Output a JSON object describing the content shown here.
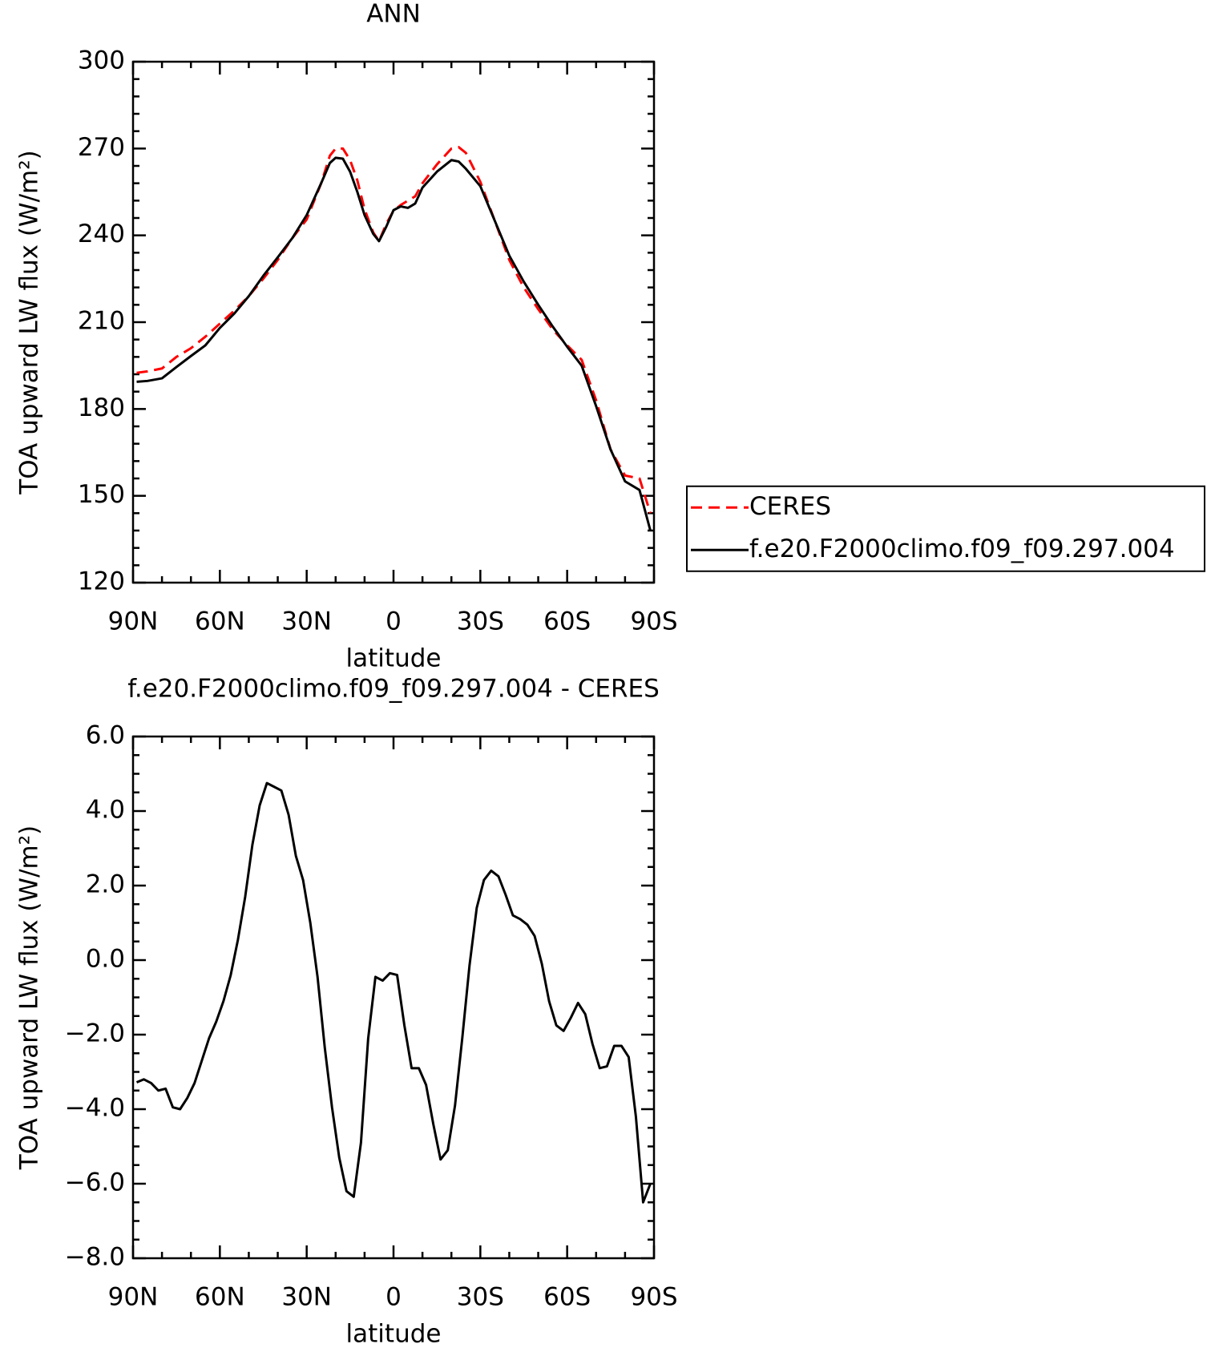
{
  "chart_data": [
    {
      "type": "line",
      "title": "ANN",
      "xlabel": "latitude",
      "ylabel": "TOA upward LW flux (W/m²)",
      "x": [
        88.75,
        85,
        80,
        75,
        70,
        65,
        60,
        55,
        50,
        45,
        40,
        35,
        30,
        25,
        22,
        20,
        17.5,
        15,
        12.5,
        10,
        7,
        5,
        2.5,
        0,
        -2.5,
        -5,
        -7.5,
        -10,
        -15,
        -20,
        -22.5,
        -25,
        -30,
        -35,
        -40,
        -45,
        -50,
        -55,
        -60,
        -65,
        -70,
        -75,
        -80,
        -85,
        -88.75
      ],
      "series": [
        {
          "name": "CERES",
          "color": "#ff0000",
          "line_style": "dashed",
          "values": [
            192.5,
            193,
            194,
            198,
            201,
            205,
            209.5,
            214,
            219,
            225,
            231.5,
            239,
            245.5,
            258,
            267.5,
            270,
            270,
            266,
            259,
            249,
            241,
            238,
            244,
            248.5,
            250.5,
            252,
            253.5,
            258,
            264.5,
            270,
            270.5,
            268.5,
            258.5,
            245,
            231.5,
            222,
            214.5,
            207.5,
            202,
            197,
            183,
            166,
            157,
            156,
            144
          ]
        },
        {
          "name": "f.e20.F2000climo.f09_f09.297.004",
          "color": "#000000",
          "line_style": "solid",
          "values": [
            189.4,
            189.7,
            190.6,
            194.5,
            198.3,
            202,
            208,
            213,
            219,
            226,
            232.4,
            239,
            247,
            258,
            265,
            266.8,
            266.5,
            262,
            255,
            247,
            240.5,
            238,
            243,
            248.7,
            250,
            249.5,
            251,
            256.5,
            262,
            266,
            265.5,
            263,
            257,
            245,
            233,
            224,
            216,
            208.5,
            201.5,
            195,
            181,
            166,
            155,
            152,
            138
          ]
        }
      ],
      "xlim": [
        90,
        -90
      ],
      "xticks": [
        {
          "value": 90,
          "label": "90N"
        },
        {
          "value": 60,
          "label": "60N"
        },
        {
          "value": 30,
          "label": "30N"
        },
        0,
        {
          "value": -30,
          "label": "30S"
        },
        {
          "value": -60,
          "label": "60S"
        },
        {
          "value": -90,
          "label": "90S"
        }
      ],
      "ylim": [
        120,
        300
      ],
      "yticks": [
        120,
        150,
        180,
        210,
        240,
        270,
        300
      ],
      "legend": "right"
    },
    {
      "type": "line",
      "title": "f.e20.F2000climo.f09_f09.297.004 - CERES",
      "xlabel": "latitude",
      "ylabel": "TOA upward LW flux (W/m²)",
      "x": [
        88.75,
        86.25,
        83.75,
        81.25,
        78.75,
        76.25,
        73.75,
        71.25,
        68.75,
        66.25,
        63.75,
        61.25,
        58.75,
        56.25,
        53.75,
        51.25,
        48.75,
        46.25,
        43.75,
        41.25,
        38.75,
        36.25,
        33.75,
        31.25,
        28.75,
        26.25,
        23.75,
        21.25,
        18.75,
        16.25,
        13.75,
        11.25,
        8.75,
        6.25,
        3.75,
        1.25,
        -1.25,
        -3.75,
        -6.25,
        -8.75,
        -11.25,
        -13.75,
        -16.25,
        -18.75,
        -21.25,
        -23.75,
        -26.25,
        -28.75,
        -31.25,
        -33.75,
        -36.25,
        -38.75,
        -41.25,
        -43.75,
        -46.25,
        -48.75,
        -51.25,
        -53.75,
        -56.25,
        -58.75,
        -61.25,
        -63.75,
        -66.25,
        -68.75,
        -71.25,
        -73.75,
        -76.25,
        -78.75,
        -81.25,
        -83.75,
        -86.25,
        -88.75
      ],
      "values": [
        -3.28,
        -3.2,
        -3.3,
        -3.5,
        -3.45,
        -3.95,
        -4.0,
        -3.7,
        -3.3,
        -2.7,
        -2.1,
        -1.65,
        -1.1,
        -0.4,
        0.55,
        1.7,
        3.1,
        4.15,
        4.75,
        4.65,
        4.55,
        3.9,
        2.8,
        2.15,
        1.0,
        -0.45,
        -2.35,
        -3.95,
        -5.3,
        -6.2,
        -6.35,
        -4.9,
        -2.1,
        -0.45,
        -0.55,
        -0.35,
        -0.4,
        -1.75,
        -2.9,
        -2.9,
        -3.35,
        -4.4,
        -5.35,
        -5.1,
        -3.9,
        -2.1,
        -0.15,
        1.4,
        2.15,
        2.4,
        2.25,
        1.75,
        1.2,
        1.1,
        0.95,
        0.65,
        -0.1,
        -1.1,
        -1.75,
        -1.9,
        -1.55,
        -1.15,
        -1.45,
        -2.25,
        -2.9,
        -2.85,
        -2.3,
        -2.3,
        -2.6,
        -4.2,
        -6.5,
        -6.0
      ],
      "color": "#000000",
      "xlim": [
        90,
        -90
      ],
      "xticks": [
        {
          "value": 90,
          "label": "90N"
        },
        {
          "value": 60,
          "label": "60N"
        },
        {
          "value": 30,
          "label": "30N"
        },
        0,
        {
          "value": -30,
          "label": "30S"
        },
        {
          "value": -60,
          "label": "60S"
        },
        {
          "value": -90,
          "label": "90S"
        }
      ],
      "ylim": [
        -8,
        6
      ],
      "yticks": [
        {
          "value": -8,
          "label": "−8.0"
        },
        {
          "value": -6,
          "label": "−6.0"
        },
        {
          "value": -4,
          "label": "−4.0"
        },
        {
          "value": -2,
          "label": "−2.0"
        },
        {
          "value": 0,
          "label": "0.0"
        },
        {
          "value": 2,
          "label": "2.0"
        },
        {
          "value": 4,
          "label": "4.0"
        },
        {
          "value": 6,
          "label": "6.0"
        }
      ]
    }
  ]
}
